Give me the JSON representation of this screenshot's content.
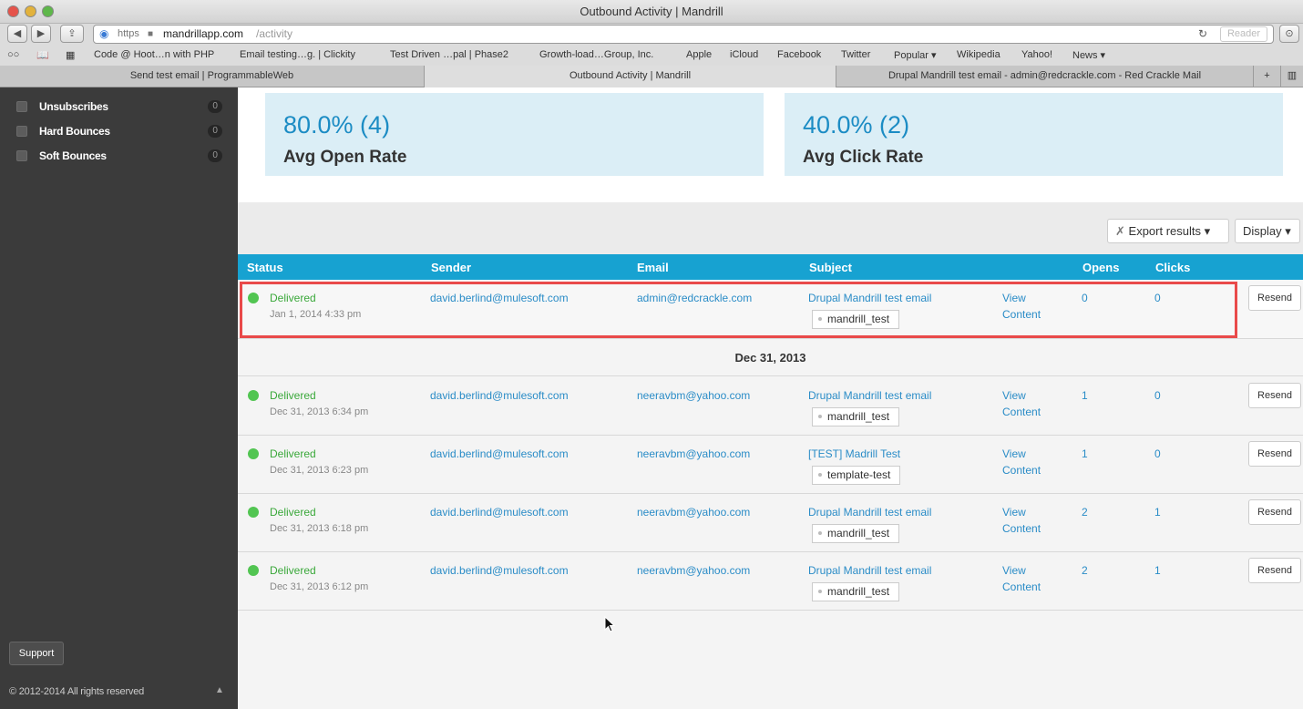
{
  "window": {
    "title": "Outbound Activity | Mandrill"
  },
  "toolbar": {
    "url_protocol": "https",
    "url_domain": "mandrillapp.com",
    "url_path": "/activity",
    "reader_label": "Reader"
  },
  "bookmarks": [
    "Code @ Hoot…n with PHP",
    "Email testing…g. | Clickity",
    "Test Driven …pal | Phase2",
    "Growth-load…Group, Inc.",
    "Apple",
    "iCloud",
    "Facebook",
    "Twitter",
    "Popular ▾",
    "Wikipedia",
    "Yahoo!",
    "News ▾"
  ],
  "tabs": [
    {
      "label": "Send test email | ProgrammableWeb"
    },
    {
      "label": "Outbound Activity | Mandrill"
    },
    {
      "label": "Drupal Mandrill test email - admin@redcrackle.com - Red Crackle Mail"
    }
  ],
  "sidebar": {
    "filters": [
      {
        "label": "Unsubscribes",
        "count": "0"
      },
      {
        "label": "Hard Bounces",
        "count": "0"
      },
      {
        "label": "Soft Bounces",
        "count": "0"
      }
    ],
    "support_label": "Support",
    "copyright": "© 2012-2014 All rights reserved"
  },
  "stats": {
    "open_value": "80.0% (4)",
    "open_label": "Avg Open Rate",
    "click_value": "40.0% (2)",
    "click_label": "Avg Click Rate"
  },
  "actions": {
    "export_label": "Export results ▾",
    "display_label": "Display ▾"
  },
  "table": {
    "headers": {
      "status": "Status",
      "sender": "Sender",
      "email": "Email",
      "subject": "Subject",
      "opens": "Opens",
      "clicks": "Clicks"
    },
    "view_label_1": "View",
    "view_label_2": "Content",
    "resend_label": "Resend",
    "rows": [
      {
        "status": "Delivered",
        "date": "Jan 1, 2014 4:33 pm",
        "sender": "david.berlind@mulesoft.com",
        "email": "admin@redcrackle.com",
        "subject": "Drupal Mandrill test email",
        "tag": "mandrill_test",
        "opens": "0",
        "clicks": "0"
      },
      {
        "status": "Delivered",
        "date": "Dec 31, 2013 6:34 pm",
        "sender": "david.berlind@mulesoft.com",
        "email": "neeravbm@yahoo.com",
        "subject": "Drupal Mandrill test email",
        "tag": "mandrill_test",
        "opens": "1",
        "clicks": "0"
      },
      {
        "status": "Delivered",
        "date": "Dec 31, 2013 6:23 pm",
        "sender": "david.berlind@mulesoft.com",
        "email": "neeravbm@yahoo.com",
        "subject": "[TEST] Madrill Test",
        "tag": "template-test",
        "opens": "1",
        "clicks": "0"
      },
      {
        "status": "Delivered",
        "date": "Dec 31, 2013 6:18 pm",
        "sender": "david.berlind@mulesoft.com",
        "email": "neeravbm@yahoo.com",
        "subject": "Drupal Mandrill test email",
        "tag": "mandrill_test",
        "opens": "2",
        "clicks": "1"
      },
      {
        "status": "Delivered",
        "date": "Dec 31, 2013 6:12 pm",
        "sender": "david.berlind@mulesoft.com",
        "email": "neeravbm@yahoo.com",
        "subject": "Drupal Mandrill test email",
        "tag": "mandrill_test",
        "opens": "2",
        "clicks": "1"
      }
    ],
    "date_separator": "Dec 31, 2013"
  }
}
